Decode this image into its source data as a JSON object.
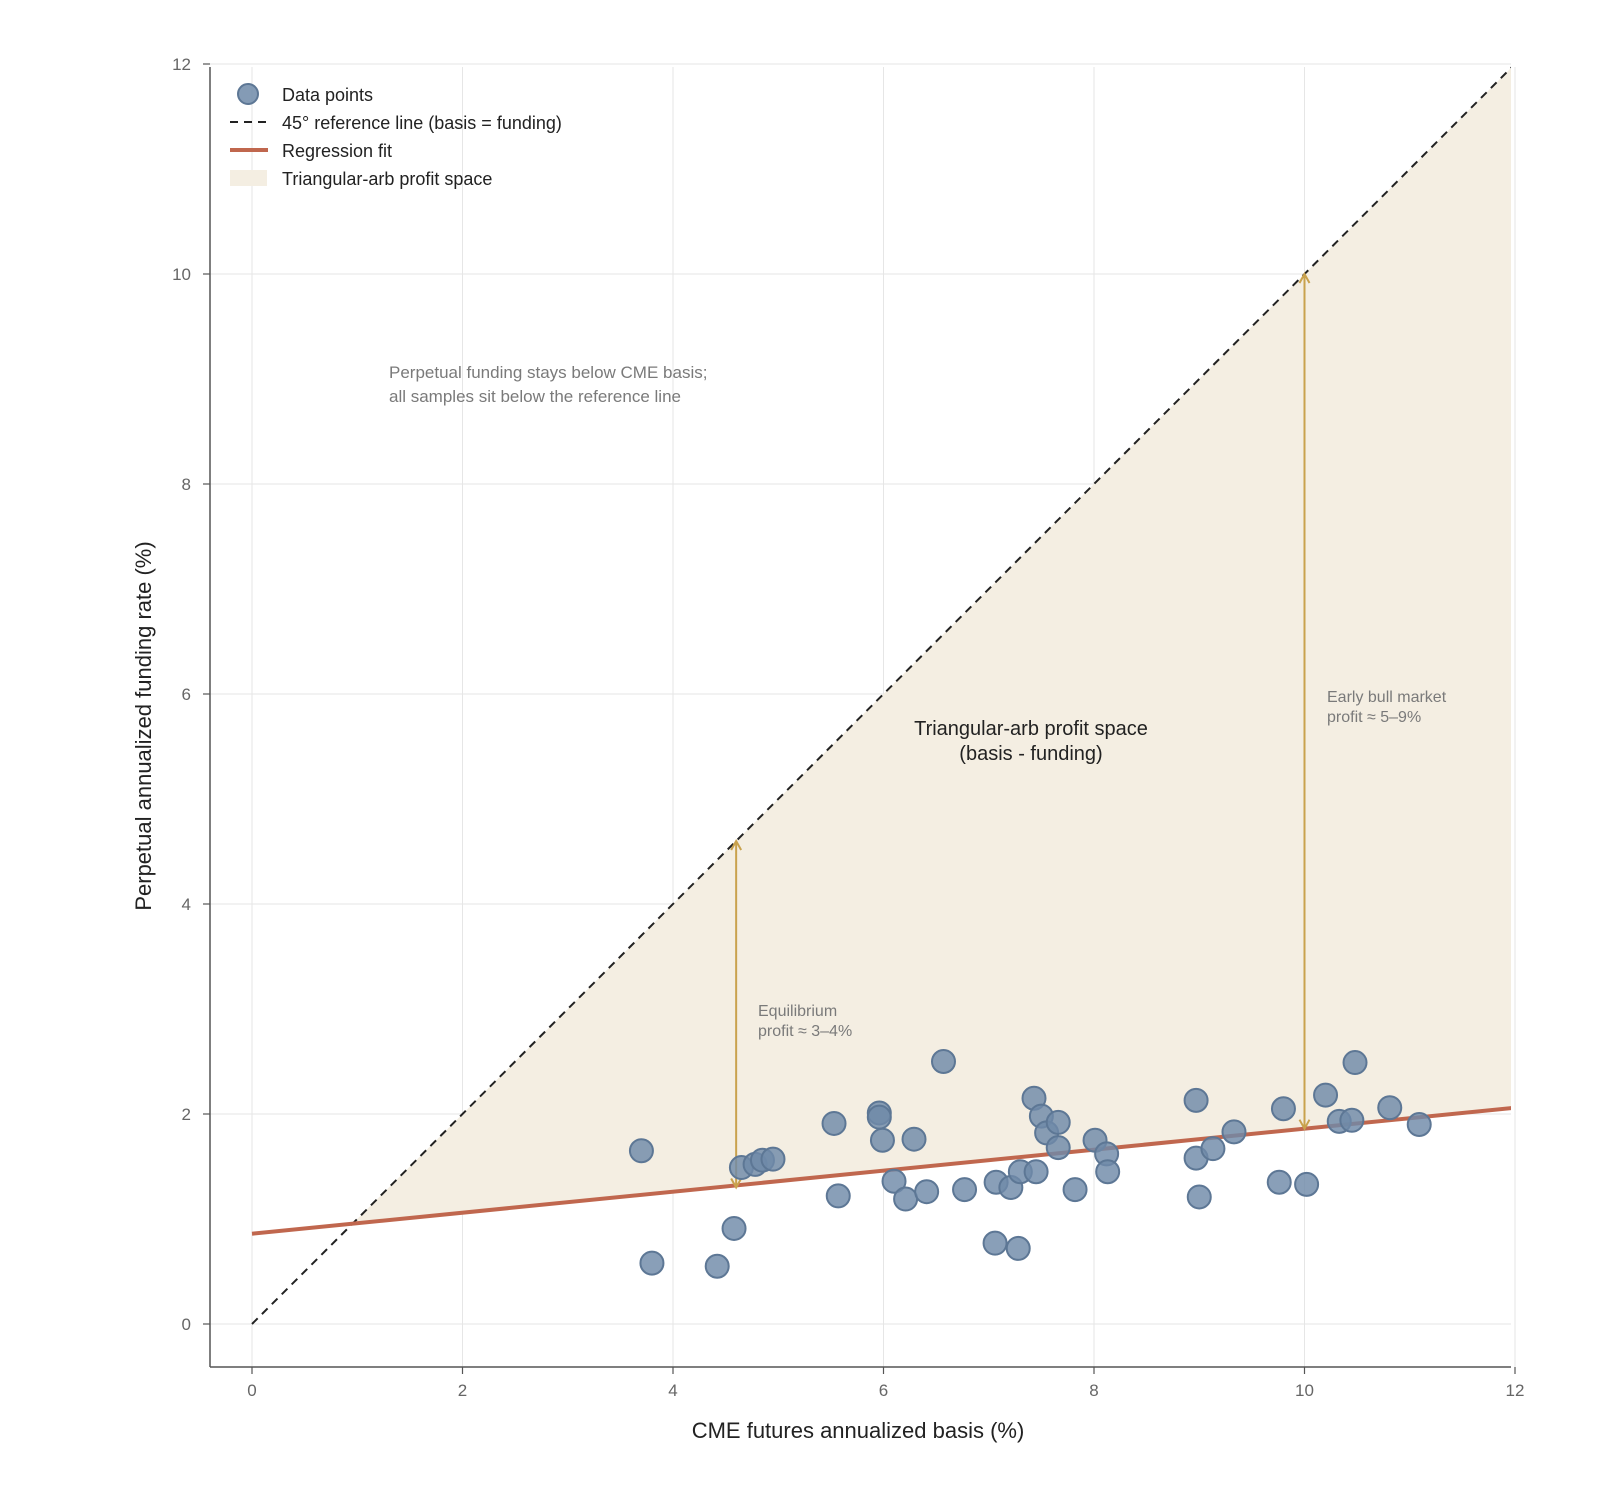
{
  "chart_data": {
    "type": "scatter",
    "xlabel": "CME futures annualized basis (%)",
    "ylabel": "Perpetual annualized funding rate (%)",
    "xlim": [
      -0.4,
      12
    ],
    "ylim": [
      -0.4,
      12
    ],
    "xticks": [
      "0",
      "2",
      "4",
      "6",
      "8",
      "10",
      "12"
    ],
    "yticks": [
      "0",
      "2",
      "4",
      "6",
      "8",
      "10",
      "12"
    ],
    "grid": true,
    "legend_position": "top-left",
    "colors": {
      "points": "#6f8aa8",
      "points_edge": "#5d7795",
      "reference": "#222222",
      "regression": "#c0674e",
      "profit_fill": "#f4eee2",
      "arrow": "#c9a24d"
    },
    "legend": [
      {
        "key": "points",
        "label": "Data points"
      },
      {
        "key": "reference",
        "label": "45° reference line (basis = funding)"
      },
      {
        "key": "regression",
        "label": "Regression fit"
      },
      {
        "key": "fill",
        "label": "Triangular-arb profit space"
      }
    ],
    "reference_line": {
      "x": [
        0,
        12
      ],
      "y": [
        0,
        12
      ]
    },
    "regression": {
      "intercept": 0.86,
      "slope": 0.1,
      "x": [
        0,
        12
      ]
    },
    "points": [
      {
        "x": 3.7,
        "y": 1.65
      },
      {
        "x": 3.8,
        "y": 0.58
      },
      {
        "x": 4.42,
        "y": 0.55
      },
      {
        "x": 4.58,
        "y": 0.91
      },
      {
        "x": 4.65,
        "y": 1.49
      },
      {
        "x": 4.78,
        "y": 1.52
      },
      {
        "x": 4.85,
        "y": 1.56
      },
      {
        "x": 4.95,
        "y": 1.57
      },
      {
        "x": 5.53,
        "y": 1.91
      },
      {
        "x": 5.57,
        "y": 1.22
      },
      {
        "x": 5.96,
        "y": 2.01
      },
      {
        "x": 5.96,
        "y": 1.97
      },
      {
        "x": 5.99,
        "y": 1.75
      },
      {
        "x": 6.1,
        "y": 1.36
      },
      {
        "x": 6.21,
        "y": 1.19
      },
      {
        "x": 6.29,
        "y": 1.76
      },
      {
        "x": 6.41,
        "y": 1.26
      },
      {
        "x": 6.57,
        "y": 2.5
      },
      {
        "x": 6.77,
        "y": 1.28
      },
      {
        "x": 7.06,
        "y": 0.77
      },
      {
        "x": 7.07,
        "y": 1.35
      },
      {
        "x": 7.21,
        "y": 1.3
      },
      {
        "x": 7.28,
        "y": 0.72
      },
      {
        "x": 7.3,
        "y": 1.45
      },
      {
        "x": 7.43,
        "y": 2.15
      },
      {
        "x": 7.45,
        "y": 1.45
      },
      {
        "x": 7.5,
        "y": 1.98
      },
      {
        "x": 7.55,
        "y": 1.82
      },
      {
        "x": 7.66,
        "y": 1.92
      },
      {
        "x": 7.66,
        "y": 1.68
      },
      {
        "x": 7.82,
        "y": 1.28
      },
      {
        "x": 8.01,
        "y": 1.75
      },
      {
        "x": 8.12,
        "y": 1.62
      },
      {
        "x": 8.13,
        "y": 1.45
      },
      {
        "x": 8.97,
        "y": 2.13
      },
      {
        "x": 8.97,
        "y": 1.58
      },
      {
        "x": 9.0,
        "y": 1.21
      },
      {
        "x": 9.13,
        "y": 1.67
      },
      {
        "x": 9.33,
        "y": 1.83
      },
      {
        "x": 9.76,
        "y": 1.35
      },
      {
        "x": 9.8,
        "y": 2.05
      },
      {
        "x": 10.02,
        "y": 1.33
      },
      {
        "x": 10.2,
        "y": 2.18
      },
      {
        "x": 10.33,
        "y": 1.93
      },
      {
        "x": 10.45,
        "y": 1.94
      },
      {
        "x": 10.48,
        "y": 2.49
      },
      {
        "x": 10.81,
        "y": 2.06
      },
      {
        "x": 11.09,
        "y": 1.9
      }
    ],
    "arrows": [
      {
        "x": 4.6,
        "y_from": 1.3,
        "y_to": 4.6
      },
      {
        "x": 10.0,
        "y_from": 1.86,
        "y_to": 10.0
      }
    ],
    "annotations": {
      "top_note": [
        "Perpetual funding stays below CME basis;",
        "all samples sit below the reference line"
      ],
      "center_note": [
        "Triangular-arb profit space",
        "(basis - funding)"
      ],
      "equilibrium": [
        "Equilibrium",
        "profit ≈ 3–4%"
      ],
      "bull": [
        "Early bull market",
        "profit ≈ 5–9%"
      ]
    }
  }
}
